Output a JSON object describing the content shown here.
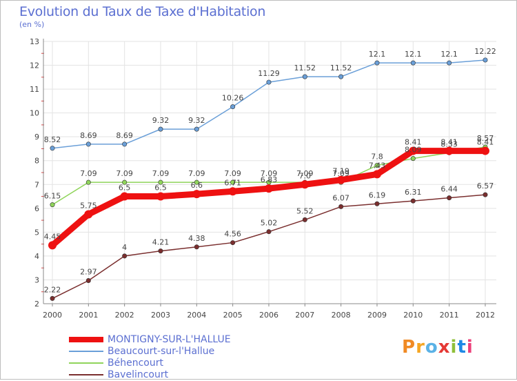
{
  "chart_data": {
    "type": "line",
    "title": "Evolution du Taux de Taxe d'Habitation",
    "ylabel": "(en %)",
    "xlabel": "",
    "ylim": [
      2,
      13
    ],
    "yticks": [
      "2",
      "3",
      "4",
      "5",
      "6",
      "7",
      "8",
      "9",
      "10",
      "11",
      "12",
      "13"
    ],
    "grid": true,
    "legend_position": "bottom-left",
    "x": [
      "2000",
      "2001",
      "2002",
      "2003",
      "2004",
      "2005",
      "2006",
      "2007",
      "2008",
      "2009",
      "2010",
      "2011",
      "2012"
    ],
    "series": [
      {
        "name": "MONTIGNY-SUR-L'HALLUE",
        "color": "#ee1111",
        "values": [
          4.45,
          5.75,
          6.5,
          6.5,
          6.6,
          6.71,
          6.83,
          7.0,
          7.19,
          7.43,
          8.41,
          8.41,
          8.41
        ],
        "labels": [
          "4.45",
          "5.75",
          "6.5",
          "6.5",
          "6.6",
          "6.71",
          "6.83",
          "7.0",
          "7.19",
          "7.43",
          "8.41",
          "8.41",
          "8.41"
        ]
      },
      {
        "name": "Beaucourt-sur-l'Hallue",
        "color": "#6a9fd8",
        "values": [
          8.52,
          8.69,
          8.69,
          9.32,
          9.32,
          10.26,
          11.29,
          11.52,
          11.52,
          12.1,
          12.1,
          12.1,
          12.22
        ],
        "labels": [
          "8.52",
          "8.69",
          "8.69",
          "9.32",
          "9.32",
          "10.26",
          "11.29",
          "11.52",
          "11.52",
          "12.1",
          "12.1",
          "12.1",
          "12.22"
        ]
      },
      {
        "name": "Béhencourt",
        "color": "#8fd45a",
        "values": [
          6.15,
          7.09,
          7.09,
          7.09,
          7.09,
          7.09,
          7.09,
          7.09,
          7.09,
          7.8,
          8.09,
          8.33,
          8.57
        ],
        "labels": [
          "6.15",
          "7.09",
          "7.09",
          "7.09",
          "7.09",
          "7.09",
          "7.09",
          "7.09",
          "7.09",
          "7.8",
          "8.09",
          "8.33",
          "8.57"
        ]
      },
      {
        "name": "Bavelincourt",
        "color": "#7a2e2e",
        "values": [
          2.22,
          2.97,
          4.0,
          4.21,
          4.38,
          4.56,
          5.02,
          5.52,
          6.07,
          6.19,
          6.31,
          6.44,
          6.57
        ],
        "labels": [
          "2.22",
          "2.97",
          "4",
          "4.21",
          "4.38",
          "4.56",
          "5.02",
          "5.52",
          "6.07",
          "6.19",
          "6.31",
          "6.44",
          "6.57"
        ]
      }
    ]
  },
  "logo": {
    "text": "Proxiti",
    "colors": [
      "#f08a24",
      "#f5a623",
      "#5bb2e6",
      "#e53935",
      "#8fbf3a",
      "#1e88e5",
      "#ec407a"
    ]
  }
}
